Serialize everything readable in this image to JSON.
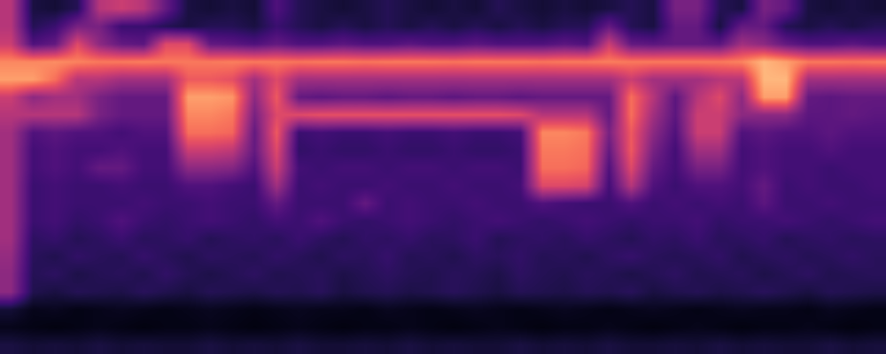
{
  "chart_data": {
    "type": "heatmap",
    "color": "magma",
    "tick_labels": false,
    "color_range": [
      0,
      1
    ],
    "cells": [
      [
        0.5,
        0.12,
        0.1,
        0.15,
        0.5,
        0.55,
        0.5,
        0.3,
        0.12,
        0.1,
        0.12,
        0.1,
        0.25,
        0.15,
        0.12,
        0.1,
        0.12,
        0.15,
        0.12,
        0.1,
        0.12,
        0.1,
        0.15,
        0.12,
        0.1,
        0.12,
        0.1,
        0.12,
        0.15,
        0.12,
        0.35,
        0.35,
        0.15,
        0.12,
        0.35,
        0.3,
        0.12,
        0.1,
        0.12,
        0.1
      ],
      [
        0.5,
        0.15,
        0.2,
        0.35,
        0.35,
        0.2,
        0.2,
        0.15,
        0.12,
        0.15,
        0.15,
        0.12,
        0.2,
        0.15,
        0.12,
        0.15,
        0.12,
        0.15,
        0.12,
        0.15,
        0.12,
        0.15,
        0.12,
        0.15,
        0.12,
        0.15,
        0.15,
        0.3,
        0.15,
        0.12,
        0.3,
        0.3,
        0.12,
        0.3,
        0.3,
        0.15,
        0.12,
        0.15,
        0.12,
        0.15
      ],
      [
        0.55,
        0.25,
        0.3,
        0.6,
        0.4,
        0.3,
        0.28,
        0.6,
        0.6,
        0.3,
        0.28,
        0.25,
        0.3,
        0.25,
        0.25,
        0.28,
        0.25,
        0.25,
        0.28,
        0.25,
        0.25,
        0.28,
        0.25,
        0.25,
        0.25,
        0.28,
        0.25,
        0.55,
        0.3,
        0.28,
        0.3,
        0.3,
        0.28,
        0.45,
        0.4,
        0.3,
        0.25,
        0.25,
        0.28,
        0.25
      ],
      [
        0.75,
        0.75,
        0.76,
        0.74,
        0.72,
        0.72,
        0.73,
        0.72,
        0.72,
        0.72,
        0.73,
        0.72,
        0.72,
        0.71,
        0.72,
        0.72,
        0.71,
        0.72,
        0.72,
        0.72,
        0.71,
        0.72,
        0.72,
        0.72,
        0.71,
        0.72,
        0.72,
        0.73,
        0.72,
        0.72,
        0.72,
        0.72,
        0.72,
        0.74,
        0.85,
        0.8,
        0.72,
        0.72,
        0.71,
        0.72
      ],
      [
        0.8,
        0.8,
        0.7,
        0.5,
        0.5,
        0.45,
        0.45,
        0.45,
        0.65,
        0.65,
        0.62,
        0.45,
        0.6,
        0.45,
        0.45,
        0.45,
        0.45,
        0.45,
        0.45,
        0.45,
        0.45,
        0.45,
        0.45,
        0.45,
        0.45,
        0.45,
        0.45,
        0.45,
        0.55,
        0.45,
        0.45,
        0.45,
        0.5,
        0.5,
        0.85,
        0.85,
        0.45,
        0.45,
        0.45,
        0.45
      ],
      [
        0.55,
        0.4,
        0.45,
        0.45,
        0.35,
        0.3,
        0.3,
        0.3,
        0.8,
        0.8,
        0.78,
        0.4,
        0.65,
        0.3,
        0.28,
        0.3,
        0.3,
        0.28,
        0.3,
        0.3,
        0.28,
        0.3,
        0.3,
        0.28,
        0.3,
        0.3,
        0.3,
        0.3,
        0.7,
        0.5,
        0.28,
        0.5,
        0.6,
        0.4,
        0.8,
        0.8,
        0.3,
        0.28,
        0.3,
        0.3
      ],
      [
        0.5,
        0.5,
        0.5,
        0.5,
        0.35,
        0.3,
        0.3,
        0.3,
        0.75,
        0.75,
        0.72,
        0.35,
        0.6,
        0.6,
        0.62,
        0.62,
        0.62,
        0.62,
        0.62,
        0.62,
        0.62,
        0.62,
        0.62,
        0.6,
        0.5,
        0.5,
        0.5,
        0.3,
        0.7,
        0.45,
        0.28,
        0.55,
        0.55,
        0.4,
        0.4,
        0.4,
        0.28,
        0.28,
        0.3,
        0.28
      ],
      [
        0.45,
        0.25,
        0.28,
        0.25,
        0.25,
        0.22,
        0.25,
        0.25,
        0.7,
        0.7,
        0.68,
        0.3,
        0.65,
        0.2,
        0.22,
        0.2,
        0.2,
        0.22,
        0.2,
        0.2,
        0.22,
        0.2,
        0.2,
        0.22,
        0.75,
        0.75,
        0.72,
        0.35,
        0.65,
        0.4,
        0.25,
        0.55,
        0.55,
        0.25,
        0.28,
        0.25,
        0.25,
        0.28,
        0.25,
        0.25
      ],
      [
        0.45,
        0.22,
        0.25,
        0.22,
        0.22,
        0.25,
        0.22,
        0.22,
        0.55,
        0.55,
        0.52,
        0.3,
        0.6,
        0.18,
        0.2,
        0.18,
        0.18,
        0.2,
        0.18,
        0.18,
        0.2,
        0.18,
        0.18,
        0.2,
        0.72,
        0.72,
        0.7,
        0.3,
        0.65,
        0.35,
        0.22,
        0.45,
        0.45,
        0.22,
        0.25,
        0.22,
        0.22,
        0.25,
        0.22,
        0.22
      ],
      [
        0.45,
        0.22,
        0.25,
        0.22,
        0.3,
        0.3,
        0.22,
        0.22,
        0.4,
        0.4,
        0.38,
        0.25,
        0.55,
        0.22,
        0.2,
        0.22,
        0.22,
        0.2,
        0.22,
        0.22,
        0.2,
        0.22,
        0.22,
        0.2,
        0.7,
        0.7,
        0.68,
        0.25,
        0.6,
        0.3,
        0.22,
        0.35,
        0.35,
        0.22,
        0.25,
        0.22,
        0.22,
        0.2,
        0.22,
        0.22
      ],
      [
        0.45,
        0.2,
        0.22,
        0.2,
        0.2,
        0.22,
        0.2,
        0.2,
        0.25,
        0.25,
        0.22,
        0.2,
        0.45,
        0.2,
        0.22,
        0.2,
        0.2,
        0.22,
        0.2,
        0.2,
        0.22,
        0.2,
        0.2,
        0.22,
        0.6,
        0.6,
        0.58,
        0.22,
        0.5,
        0.25,
        0.2,
        0.25,
        0.25,
        0.22,
        0.3,
        0.2,
        0.22,
        0.2,
        0.2,
        0.22
      ],
      [
        0.45,
        0.2,
        0.22,
        0.2,
        0.2,
        0.2,
        0.22,
        0.2,
        0.2,
        0.22,
        0.2,
        0.2,
        0.3,
        0.2,
        0.2,
        0.2,
        0.3,
        0.2,
        0.22,
        0.2,
        0.2,
        0.22,
        0.2,
        0.2,
        0.25,
        0.22,
        0.2,
        0.2,
        0.25,
        0.2,
        0.22,
        0.2,
        0.22,
        0.2,
        0.28,
        0.2,
        0.2,
        0.22,
        0.2,
        0.2
      ],
      [
        0.45,
        0.2,
        0.22,
        0.18,
        0.2,
        0.25,
        0.2,
        0.18,
        0.2,
        0.22,
        0.2,
        0.18,
        0.22,
        0.2,
        0.25,
        0.2,
        0.18,
        0.2,
        0.22,
        0.2,
        0.18,
        0.2,
        0.22,
        0.2,
        0.18,
        0.2,
        0.22,
        0.2,
        0.18,
        0.2,
        0.2,
        0.22,
        0.18,
        0.2,
        0.2,
        0.22,
        0.2,
        0.18,
        0.2,
        0.22
      ],
      [
        0.45,
        0.17,
        0.19,
        0.15,
        0.17,
        0.2,
        0.16,
        0.17,
        0.19,
        0.15,
        0.17,
        0.18,
        0.16,
        0.2,
        0.17,
        0.15,
        0.18,
        0.17,
        0.19,
        0.16,
        0.17,
        0.2,
        0.15,
        0.17,
        0.18,
        0.16,
        0.19,
        0.17,
        0.15,
        0.18,
        0.17,
        0.2,
        0.16,
        0.17,
        0.19,
        0.15,
        0.17,
        0.18,
        0.16,
        0.17
      ],
      [
        0.42,
        0.16,
        0.14,
        0.18,
        0.16,
        0.15,
        0.19,
        0.16,
        0.14,
        0.17,
        0.16,
        0.15,
        0.18,
        0.16,
        0.14,
        0.17,
        0.16,
        0.19,
        0.15,
        0.16,
        0.14,
        0.17,
        0.16,
        0.18,
        0.15,
        0.16,
        0.14,
        0.17,
        0.19,
        0.16,
        0.15,
        0.16,
        0.18,
        0.14,
        0.16,
        0.17,
        0.15,
        0.16,
        0.18,
        0.16
      ],
      [
        0.4,
        0.15,
        0.17,
        0.13,
        0.15,
        0.16,
        0.14,
        0.18,
        0.15,
        0.13,
        0.15,
        0.17,
        0.14,
        0.15,
        0.16,
        0.13,
        0.15,
        0.17,
        0.15,
        0.14,
        0.16,
        0.15,
        0.13,
        0.17,
        0.15,
        0.14,
        0.16,
        0.15,
        0.13,
        0.15,
        0.17,
        0.14,
        0.15,
        0.16,
        0.13,
        0.15,
        0.17,
        0.14,
        0.15,
        0.16
      ],
      [
        0.4,
        0.14,
        0.12,
        0.15,
        0.14,
        0.13,
        0.16,
        0.14,
        0.12,
        0.15,
        0.14,
        0.13,
        0.15,
        0.14,
        0.16,
        0.12,
        0.14,
        0.15,
        0.13,
        0.14,
        0.16,
        0.14,
        0.12,
        0.15,
        0.14,
        0.13,
        0.15,
        0.14,
        0.16,
        0.12,
        0.14,
        0.15,
        0.13,
        0.14,
        0.16,
        0.14,
        0.12,
        0.15,
        0.14,
        0.13
      ],
      [
        0.1,
        0.05,
        0.06,
        0.04,
        0.05,
        0.06,
        0.05,
        0.04,
        0.05,
        0.06,
        0.05,
        0.04,
        0.05,
        0.06,
        0.05,
        0.05,
        0.04,
        0.06,
        0.05,
        0.04,
        0.05,
        0.06,
        0.05,
        0.04,
        0.05,
        0.06,
        0.05,
        0.04,
        0.05,
        0.06,
        0.05,
        0.04,
        0.05,
        0.06,
        0.05,
        0.05,
        0.04,
        0.06,
        0.05,
        0.04
      ],
      [
        0.05,
        0.04,
        0.03,
        0.04,
        0.05,
        0.04,
        0.03,
        0.04,
        0.04,
        0.05,
        0.04,
        0.03,
        0.04,
        0.05,
        0.04,
        0.03,
        0.04,
        0.04,
        0.05,
        0.04,
        0.03,
        0.04,
        0.05,
        0.04,
        0.03,
        0.04,
        0.04,
        0.05,
        0.04,
        0.03,
        0.04,
        0.05,
        0.04,
        0.03,
        0.04,
        0.04,
        0.05,
        0.04,
        0.03,
        0.04
      ],
      [
        0.12,
        0.1,
        0.11,
        0.1,
        0.12,
        0.1,
        0.11,
        0.1,
        0.1,
        0.12,
        0.1,
        0.11,
        0.1,
        0.12,
        0.1,
        0.1,
        0.11,
        0.1,
        0.12,
        0.1,
        0.11,
        0.1,
        0.1,
        0.12,
        0.1,
        0.11,
        0.1,
        0.12,
        0.1,
        0.1,
        0.11,
        0.1,
        0.12,
        0.1,
        0.11,
        0.1,
        0.1,
        0.12,
        0.1,
        0.11
      ]
    ]
  }
}
